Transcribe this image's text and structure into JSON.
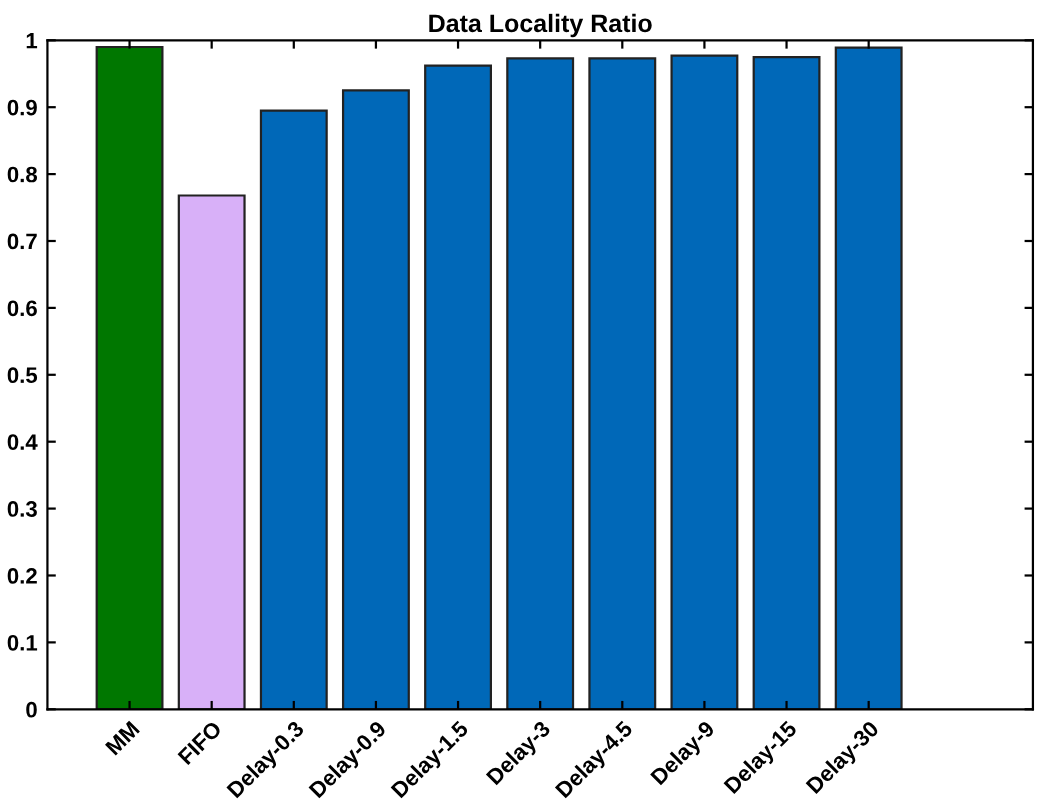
{
  "chart_data": {
    "type": "bar",
    "title": "Data Locality Ratio",
    "categories": [
      "MM",
      "FIFO",
      "Delay-0.3",
      "Delay-0.9",
      "Delay-1.5",
      "Delay-3",
      "Delay-4.5",
      "Delay-9",
      "Delay-15",
      "Delay-30"
    ],
    "values": [
      0.99,
      0.768,
      0.895,
      0.925,
      0.962,
      0.973,
      0.973,
      0.977,
      0.975,
      0.989
    ],
    "colors": [
      "#007700",
      "#d8b0f8",
      "#0068b8",
      "#0068b8",
      "#0068b8",
      "#0068b8",
      "#0068b8",
      "#0068b8",
      "#0068b8",
      "#0068b8"
    ],
    "ylim": [
      0,
      1
    ],
    "yticks": [
      0,
      0.1,
      0.2,
      0.3,
      0.4,
      0.5,
      0.6,
      0.7,
      0.8,
      0.9,
      1
    ],
    "grid": false,
    "legend": false
  }
}
